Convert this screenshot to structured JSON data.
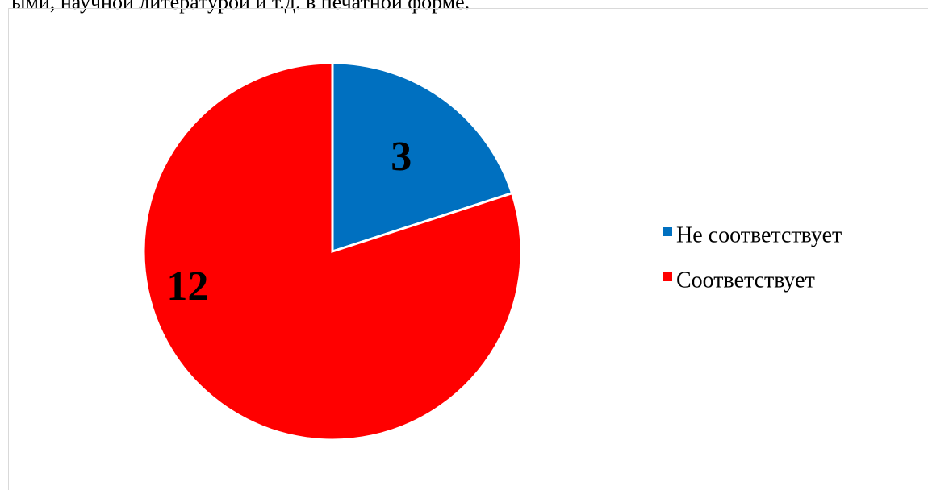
{
  "document": {
    "text_line": "ыми, научной литературой и т.д. в печатной форме."
  },
  "chart_data": {
    "type": "pie",
    "categories": [
      "Не соответствует",
      "Соответствует"
    ],
    "values": [
      3,
      12
    ],
    "colors": [
      "#0070c0",
      "#ff0000"
    ],
    "data_labels": [
      "3",
      "12"
    ],
    "legend_position": "right",
    "start_angle_deg": 0,
    "direction": "clockwise",
    "slice_border_color": "#ffffff"
  }
}
